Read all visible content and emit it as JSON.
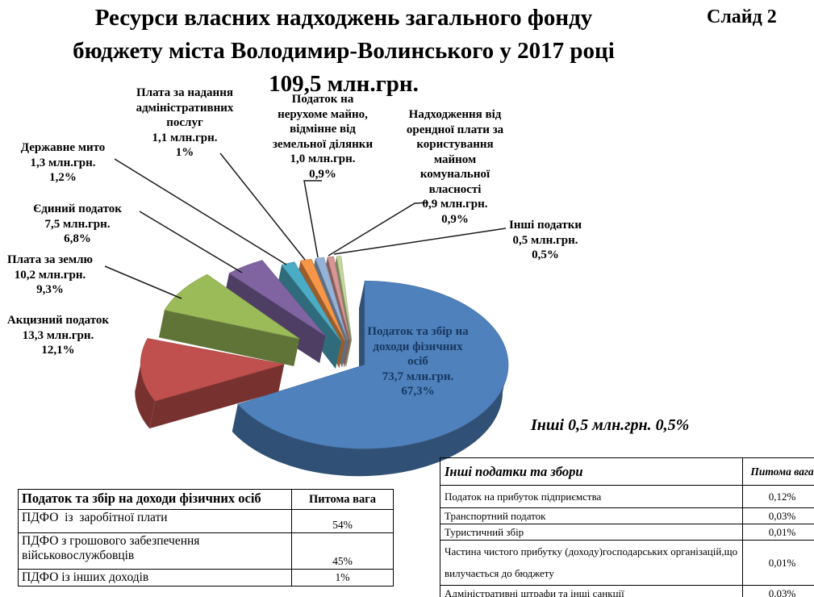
{
  "slide": {
    "title_lines": [
      "Ресурси власних надходжень загального фонду",
      "бюджету міста Володимир-Волинського у 2017 році",
      "109,5 млн.грн."
    ],
    "slide_number": "Слайд 2"
  },
  "chart_data": {
    "type": "pie",
    "title": "Ресурси власних надходжень загального фонду бюджету міста Володимир-Волинського у 2017 році",
    "total_label": "109,5 млн.грн.",
    "total_value_mln": 109.5,
    "units": "млн.грн.",
    "legend": "callout-labels",
    "series": [
      {
        "name": "Податок та збір на доходи фізичних осіб",
        "value": 73.7,
        "percent": 67.3,
        "value_label": "73,7 млн.грн.",
        "percent_label": "67,3%",
        "color": "#4F81BD"
      },
      {
        "name": "Акцизний податок",
        "value": 13.3,
        "percent": 12.1,
        "value_label": "13,3 млн.грн.",
        "percent_label": "12,1%",
        "color": "#C0504D"
      },
      {
        "name": "Плата за землю",
        "value": 10.2,
        "percent": 9.3,
        "value_label": "10,2 млн.грн.",
        "percent_label": "9,3%",
        "color": "#9BBB59"
      },
      {
        "name": "Єдиний податок",
        "value": 7.5,
        "percent": 6.8,
        "value_label": "7,5 млн.грн.",
        "percent_label": "6,8%",
        "color": "#8064A2"
      },
      {
        "name": "Державне мито",
        "value": 1.3,
        "percent": 1.2,
        "value_label": "1,3 млн.грн.",
        "percent_label": "1,2%",
        "color": "#4BACC6"
      },
      {
        "name": "Плата за надання адміністративних послуг",
        "value": 1.1,
        "percent": 1.0,
        "value_label": "1,1 млн.грн.",
        "percent_label": "1%",
        "color": "#F79646"
      },
      {
        "name": "Податок на нерухоме майно, відмінне від земельної ділянки",
        "value": 1.0,
        "percent": 0.9,
        "value_label": "1,0 млн.грн.",
        "percent_label": "0,9%",
        "color": "#95B3D7"
      },
      {
        "name": "Надходження від орендної плати за користування майном комунальної власності",
        "value": 0.9,
        "percent": 0.9,
        "value_label": "0,9 млн.грн.",
        "percent_label": "0,9%",
        "color": "#D99694"
      },
      {
        "name": "Інші податки",
        "value": 0.5,
        "percent": 0.5,
        "value_label": "0,5 млн.грн.",
        "percent_label": "0,5%",
        "color": "#C3D69B"
      }
    ]
  },
  "other_note": "Інші 0,5 млн.грн. 0,5%",
  "tables": {
    "pdfo": {
      "header": [
        "Податок та збір на доходи фізичних осіб",
        "Питома вага"
      ],
      "rows": [
        [
          "ПДФО  із  заробітної плати",
          "54%"
        ],
        [
          "ПДФО з грошового забезпечення військовослужбовців",
          "45%"
        ],
        [
          "ПДФО із інших доходів",
          "1%"
        ]
      ]
    },
    "other_taxes": {
      "header": [
        "Інші податки та збори",
        "Питома вага"
      ],
      "rows": [
        [
          "Податок на прибуток підприємства",
          "0,12%"
        ],
        [
          "Транспортний податок",
          "0,03%"
        ],
        [
          "Туристичний збір",
          "0,01%"
        ],
        [
          "Частина чистого прибутку (доходу)господарських організацій,що вилучається до бюджету",
          "0,01%"
        ],
        [
          "Адміністративні штрафи та інші санкції",
          "0,03%"
        ]
      ]
    }
  }
}
